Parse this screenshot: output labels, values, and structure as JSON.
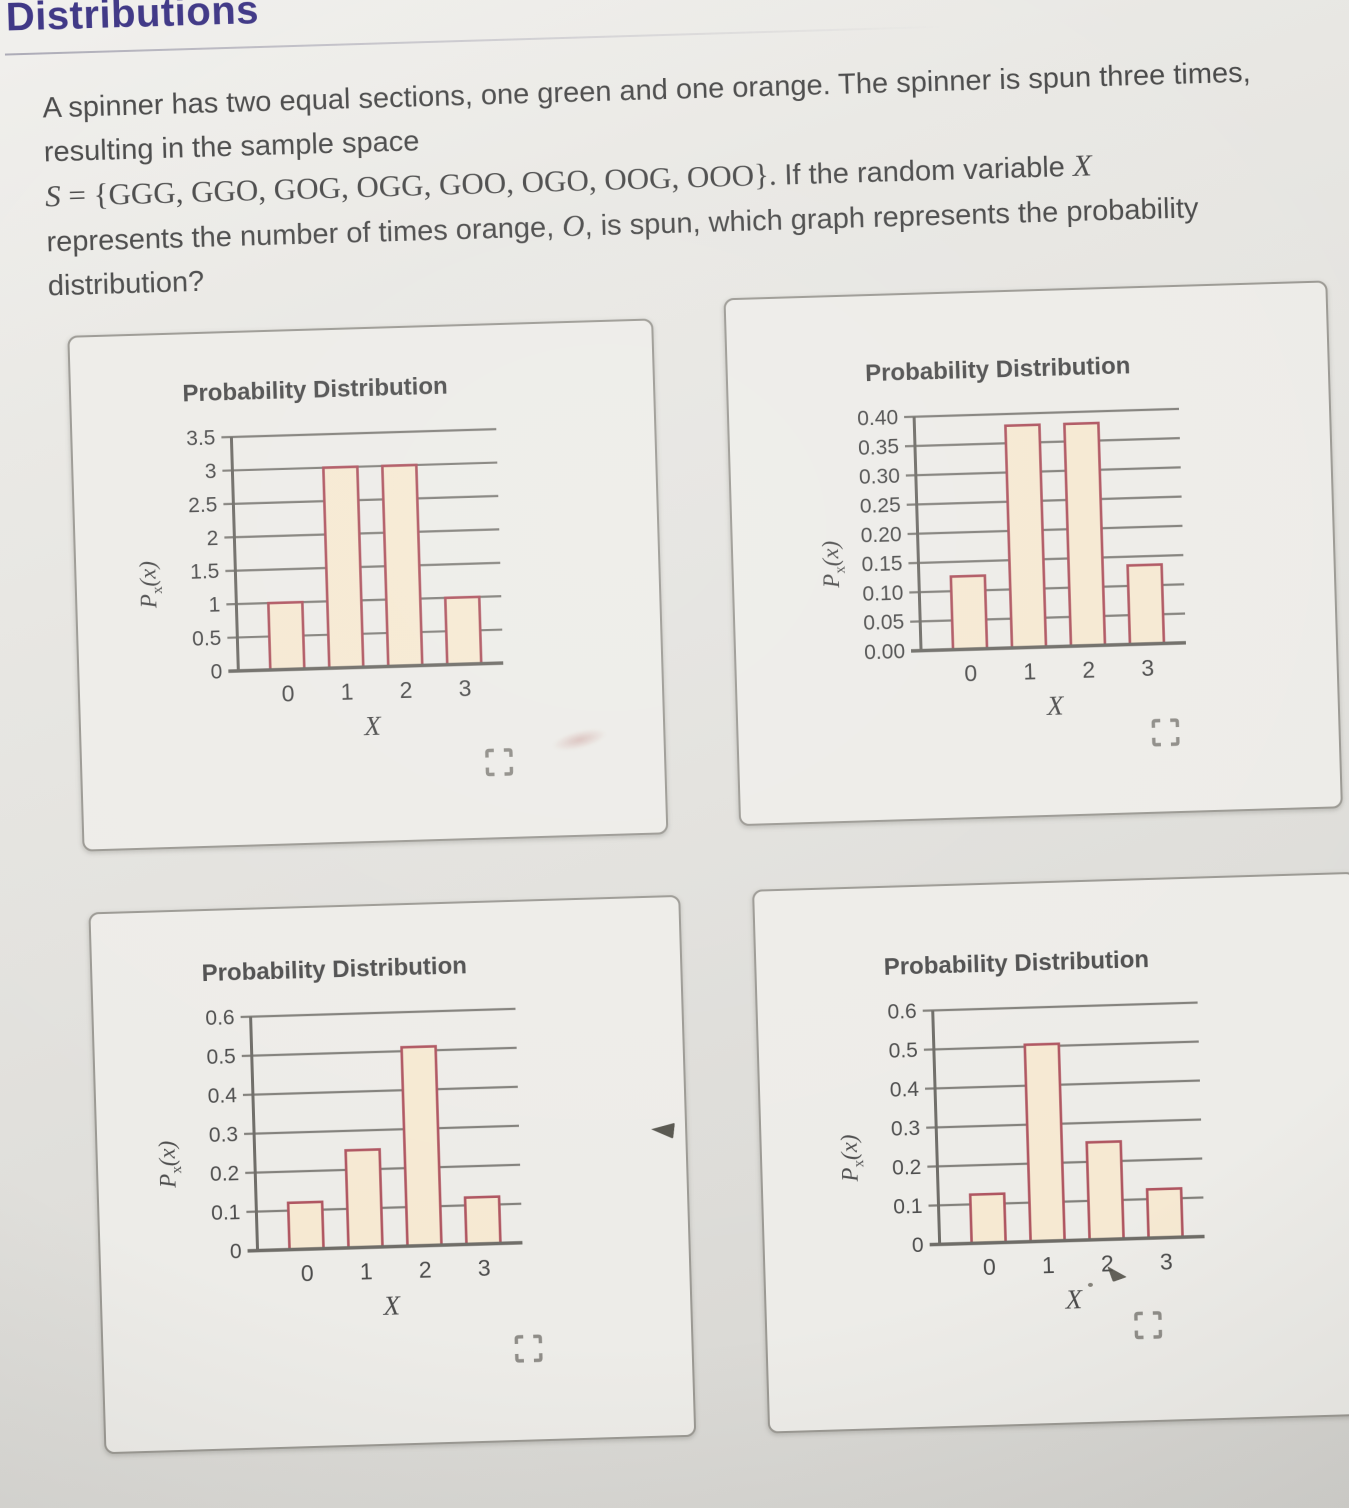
{
  "page_header": {
    "title": "Distributions"
  },
  "question": {
    "lines": [
      {
        "segments": [
          {
            "text": "A spinner has two equal sections, one green and one orange. The spinner is spun three times,",
            "font": "sans"
          }
        ]
      },
      {
        "segments": [
          {
            "text": "resulting in the sample space",
            "font": "sans"
          }
        ]
      },
      {
        "segments": [
          {
            "text": "S",
            "font": "serif-italic"
          },
          {
            "text": " = {GGG, GGO, GOG, OGG, GOO, OGO, OOG, OOO}. ",
            "font": "serif"
          },
          {
            "text": "If the random variable ",
            "font": "sans"
          },
          {
            "text": "X",
            "font": "serif-italic"
          }
        ]
      },
      {
        "segments": [
          {
            "text": "represents the number of times orange, ",
            "font": "sans"
          },
          {
            "text": "O",
            "font": "serif-italic"
          },
          {
            "text": ", is spun, which graph represents the probability",
            "font": "sans"
          }
        ]
      },
      {
        "segments": [
          {
            "text": "distribution?",
            "font": "sans"
          }
        ]
      }
    ]
  },
  "chart_data": [
    {
      "type": "bar",
      "option_position": "top-left",
      "title": "Probability Distribution",
      "xlabel": "X",
      "ylabel": "P_x(x)",
      "categories": [
        "0",
        "1",
        "2",
        "3"
      ],
      "values": [
        1,
        3,
        3,
        1
      ],
      "ylim": [
        0,
        3.5
      ],
      "yticks_top_to_bottom": [
        "3.5",
        "3",
        "2.5",
        "2",
        "1.5",
        "1",
        "0.5",
        "0"
      ],
      "grid": true,
      "legend": false
    },
    {
      "type": "bar",
      "option_position": "top-right",
      "title": "Probability Distribution",
      "xlabel": "X",
      "ylabel": "P_x(x)",
      "categories": [
        "0",
        "1",
        "2",
        "3"
      ],
      "values": [
        0.125,
        0.38,
        0.38,
        0.135
      ],
      "ylim": [
        0,
        0.4
      ],
      "yticks_top_to_bottom": [
        "0.40",
        "0.35",
        "0.30",
        "0.25",
        "0.20",
        "0.15",
        "0.10",
        "0.05",
        "0.00"
      ],
      "grid": true,
      "legend": false
    },
    {
      "type": "bar",
      "option_position": "bottom-left",
      "title": "Probability Distribution",
      "xlabel": "X",
      "ylabel": "P_x(x)",
      "categories": [
        "0",
        "1",
        "2",
        "3"
      ],
      "values": [
        0.12,
        0.25,
        0.51,
        0.12
      ],
      "ylim": [
        0,
        0.6
      ],
      "yticks_top_to_bottom": [
        "0.6",
        "0.5",
        "0.4",
        "0.3",
        "0.2",
        "0.1",
        "0"
      ],
      "grid": true,
      "legend": false
    },
    {
      "type": "bar",
      "option_position": "bottom-right",
      "title": "Probability Distribution",
      "xlabel": "X",
      "ylabel": "P_x(x)",
      "categories": [
        "0",
        "1",
        "2",
        "3"
      ],
      "values": [
        0.125,
        0.505,
        0.25,
        0.125
      ],
      "ylim": [
        0,
        0.6
      ],
      "yticks_top_to_bottom": [
        "0.6",
        "0.5",
        "0.4",
        "0.3",
        "0.2",
        "0.1",
        "0"
      ],
      "grid": true,
      "legend": false
    }
  ],
  "icons": {
    "expand": "fullscreen-corner-brackets"
  },
  "colors": {
    "header_text": "#3e3685",
    "body_text": "#484848",
    "panel_bg": "#edece8",
    "panel_border": "#9b9993",
    "grid_line": "#82807b",
    "axis_line": "#6e6c67",
    "bar_fill": "#f6e9d2",
    "bar_border": "#af5560",
    "tick_text": "#4c4c4c",
    "chart_title_text": "#4e4e4e",
    "expand_icon": "#8f8d88"
  }
}
